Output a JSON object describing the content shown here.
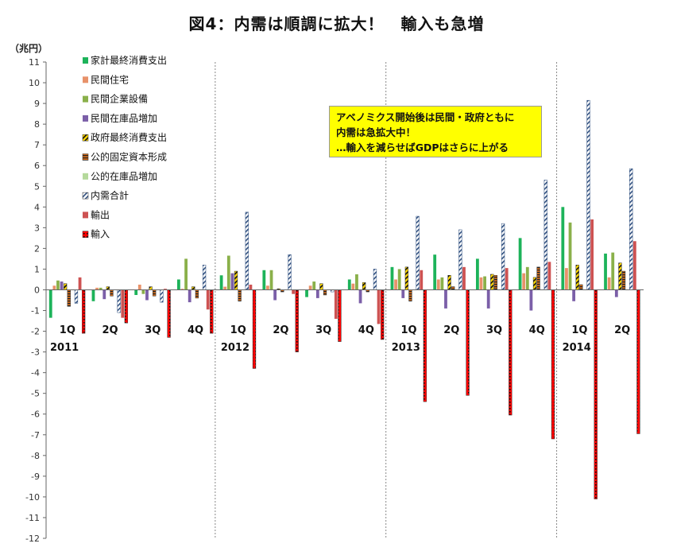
{
  "title": "図4：内需は順調に拡大！　輸入も急増",
  "unit_label": "（兆円）",
  "annotation": [
    "アベノミクス開始後は民間・政府ともに",
    "内需は急拡大中！",
    "…輸入を減らせばGDPはさらに上がる"
  ],
  "chart_data": {
    "type": "bar",
    "ylim": [
      -12,
      11
    ],
    "yticks": [
      11,
      10,
      9,
      8,
      7,
      6,
      5,
      4,
      3,
      2,
      1,
      0,
      -1,
      -2,
      -3,
      -4,
      -5,
      -6,
      -7,
      -8,
      -9,
      -10,
      -11,
      -12
    ],
    "grid": false,
    "legend_position": "top-left",
    "categories": [
      "1Q",
      "2Q",
      "3Q",
      "4Q",
      "1Q",
      "2Q",
      "3Q",
      "4Q",
      "1Q",
      "2Q",
      "3Q",
      "4Q",
      "1Q",
      "2Q"
    ],
    "years": [
      {
        "label": "2011",
        "start_index": 0
      },
      {
        "label": "2012",
        "start_index": 4
      },
      {
        "label": "2013",
        "start_index": 8
      },
      {
        "label": "2014",
        "start_index": 12
      }
    ],
    "series": [
      {
        "name": "家計最終消費支出",
        "color": "#1db35a",
        "pattern": "solid",
        "values": [
          -1.35,
          -0.55,
          -0.25,
          0.5,
          0.7,
          0.95,
          -0.35,
          0.5,
          1.1,
          1.7,
          1.5,
          2.5,
          4.0,
          1.75
        ]
      },
      {
        "name": "民間住宅",
        "color": "#e8926a",
        "pattern": "solid",
        "values": [
          0.2,
          0.1,
          0.25,
          0.05,
          0.15,
          0.2,
          0.2,
          0.3,
          0.5,
          0.5,
          0.6,
          0.8,
          1.05,
          0.6
        ]
      },
      {
        "name": "民間企業設備",
        "color": "#8ab04a",
        "pattern": "solid",
        "values": [
          0.45,
          0.1,
          -0.2,
          1.5,
          1.65,
          0.95,
          0.4,
          0.75,
          1.0,
          0.6,
          0.65,
          1.1,
          3.25,
          1.8
        ]
      },
      {
        "name": "民間在庫品増加",
        "color": "#7b5fa8",
        "pattern": "solid",
        "values": [
          0.4,
          -0.45,
          -0.5,
          -0.6,
          0.8,
          -0.5,
          -0.4,
          -0.65,
          -0.4,
          -0.9,
          -0.9,
          -1.0,
          -0.55,
          -0.35
        ]
      },
      {
        "name": "政府最終消費支出",
        "color": "#ffd800",
        "pattern": "diag",
        "values": [
          0.3,
          0.15,
          0.15,
          0.15,
          0.9,
          0.05,
          0.3,
          0.35,
          1.1,
          0.7,
          0.75,
          0.6,
          1.2,
          1.3
        ]
      },
      {
        "name": "公的固定資本形成",
        "color": "#d06a1a",
        "pattern": "hstripe",
        "values": [
          -0.8,
          -0.3,
          -0.3,
          -0.4,
          -0.55,
          -0.1,
          -0.25,
          -0.1,
          -0.55,
          0.15,
          0.7,
          1.1,
          0.25,
          0.9
        ]
      },
      {
        "name": "公的在庫品増加",
        "color": "#b5d99c",
        "pattern": "solid",
        "values": [
          0.02,
          0.01,
          0.01,
          0.01,
          0.01,
          0.01,
          0.01,
          0.01,
          0.01,
          0.01,
          0.01,
          0.01,
          0.01,
          0.01
        ]
      },
      {
        "name": "内需合計",
        "color": "#7fa7d6",
        "pattern": "diagblue",
        "values": [
          -0.65,
          -1.1,
          -0.6,
          1.2,
          3.75,
          1.7,
          -0.1,
          1.0,
          3.55,
          2.9,
          3.2,
          5.3,
          9.15,
          5.85
        ]
      },
      {
        "name": "輸出",
        "color": "#cd5252",
        "pattern": "solid",
        "values": [
          0.6,
          -1.35,
          0.05,
          -0.95,
          0.25,
          -0.2,
          -1.4,
          -1.65,
          0.95,
          1.1,
          1.05,
          1.35,
          3.4,
          2.35
        ]
      },
      {
        "name": "輸入",
        "color": "#ff0000",
        "pattern": "dotted",
        "values": [
          -2.1,
          -1.6,
          -2.3,
          -2.1,
          -3.8,
          -3.0,
          -2.5,
          -2.4,
          -5.4,
          -5.1,
          -6.05,
          -7.2,
          -10.1,
          -6.95
        ]
      }
    ]
  }
}
